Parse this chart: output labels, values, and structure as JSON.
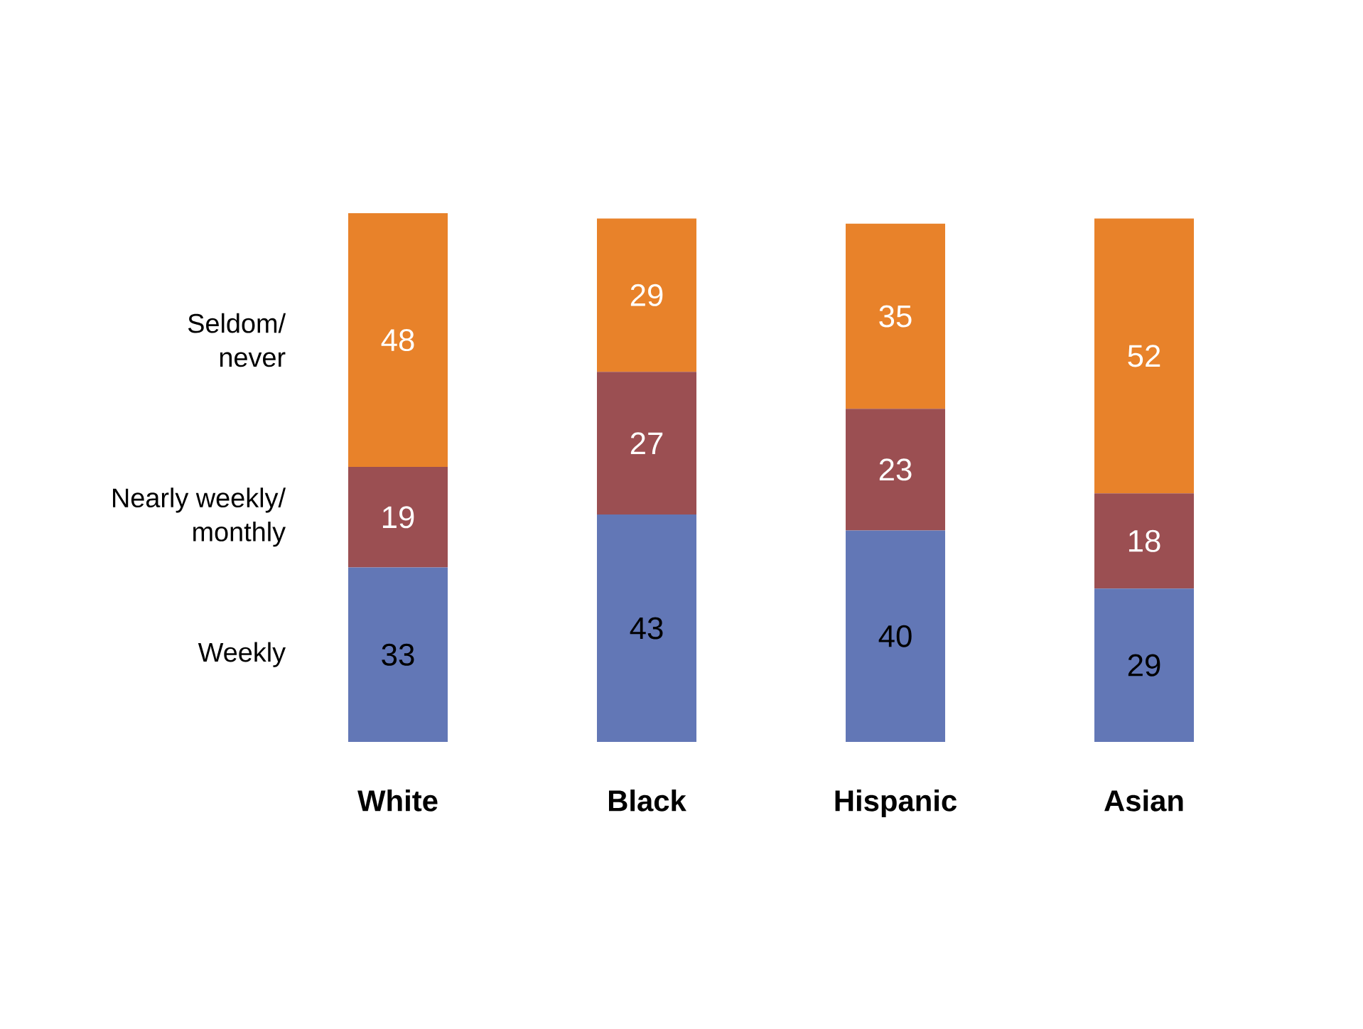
{
  "chart_data": {
    "type": "bar",
    "stacked": true,
    "data_labels": true,
    "categories": [
      "White",
      "Black",
      "Hispanic",
      "Asian"
    ],
    "series": [
      {
        "name": "Weekly",
        "color": "#6277b6",
        "values": [
          33,
          43,
          40,
          29
        ]
      },
      {
        "name": "Nearly weekly/ monthly",
        "color": "#9b4f52",
        "values": [
          19,
          27,
          23,
          18
        ]
      },
      {
        "name": "Seldom/ never",
        "color": "#e8822a",
        "values": [
          48,
          29,
          35,
          52
        ]
      }
    ]
  }
}
